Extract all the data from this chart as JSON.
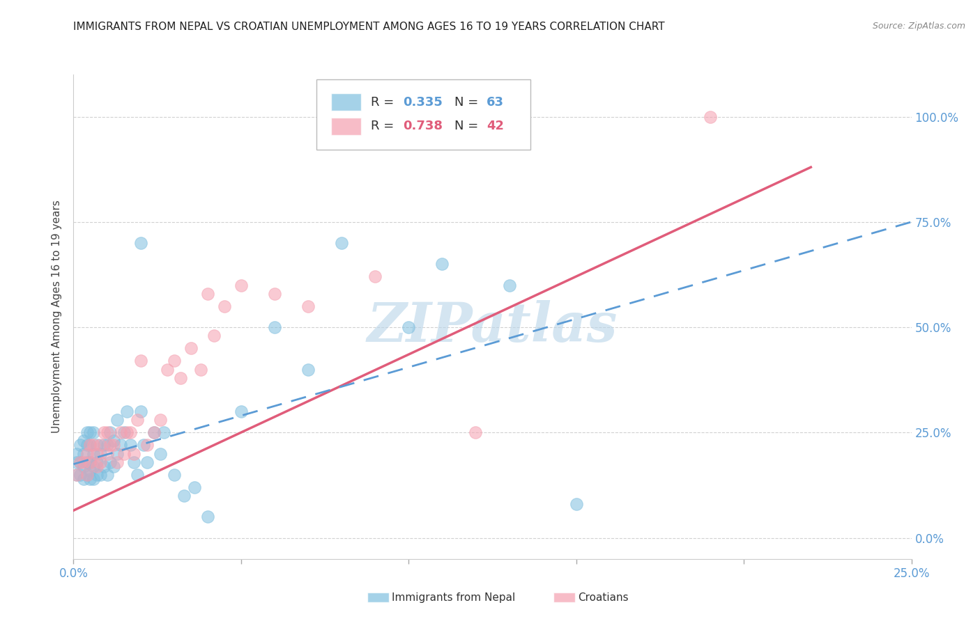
{
  "title": "IMMIGRANTS FROM NEPAL VS CROATIAN UNEMPLOYMENT AMONG AGES 16 TO 19 YEARS CORRELATION CHART",
  "source": "Source: ZipAtlas.com",
  "ylabel": "Unemployment Among Ages 16 to 19 years",
  "xmin": 0.0,
  "xmax": 0.25,
  "ymin": -0.05,
  "ymax": 1.1,
  "yticks": [
    0.0,
    0.25,
    0.5,
    0.75,
    1.0
  ],
  "xticks": [
    0.0,
    0.05,
    0.1,
    0.15,
    0.2,
    0.25
  ],
  "blue_color": "#7fbfdf",
  "pink_color": "#f5a0b0",
  "blue_line_color": "#5b9bd5",
  "pink_line_color": "#e05c7a",
  "axis_color": "#5b9bd5",
  "grid_color": "#cccccc",
  "title_fontsize": 11,
  "legend_r1": "0.335",
  "legend_n1": "63",
  "legend_r2": "0.738",
  "legend_n2": "42",
  "legend_label1": "Immigrants from Nepal",
  "legend_label2": "Croatians",
  "blue_scatter_x": [
    0.001,
    0.001,
    0.001,
    0.002,
    0.002,
    0.002,
    0.003,
    0.003,
    0.003,
    0.003,
    0.004,
    0.004,
    0.004,
    0.004,
    0.005,
    0.005,
    0.005,
    0.005,
    0.005,
    0.006,
    0.006,
    0.006,
    0.006,
    0.007,
    0.007,
    0.007,
    0.008,
    0.008,
    0.009,
    0.009,
    0.01,
    0.01,
    0.011,
    0.011,
    0.012,
    0.012,
    0.013,
    0.013,
    0.014,
    0.015,
    0.016,
    0.017,
    0.018,
    0.019,
    0.02,
    0.021,
    0.022,
    0.024,
    0.026,
    0.027,
    0.03,
    0.033,
    0.036,
    0.04,
    0.05,
    0.06,
    0.07,
    0.08,
    0.1,
    0.11,
    0.13,
    0.15,
    0.02
  ],
  "blue_scatter_y": [
    0.15,
    0.18,
    0.2,
    0.15,
    0.18,
    0.22,
    0.14,
    0.17,
    0.2,
    0.23,
    0.15,
    0.18,
    0.22,
    0.25,
    0.14,
    0.16,
    0.18,
    0.22,
    0.25,
    0.14,
    0.17,
    0.2,
    0.25,
    0.15,
    0.18,
    0.22,
    0.15,
    0.2,
    0.17,
    0.22,
    0.15,
    0.22,
    0.18,
    0.25,
    0.17,
    0.23,
    0.2,
    0.28,
    0.22,
    0.25,
    0.3,
    0.22,
    0.18,
    0.15,
    0.3,
    0.22,
    0.18,
    0.25,
    0.2,
    0.25,
    0.15,
    0.1,
    0.12,
    0.05,
    0.3,
    0.5,
    0.4,
    0.7,
    0.5,
    0.65,
    0.6,
    0.08,
    0.7
  ],
  "pink_scatter_x": [
    0.001,
    0.002,
    0.003,
    0.004,
    0.004,
    0.005,
    0.005,
    0.006,
    0.007,
    0.007,
    0.008,
    0.008,
    0.009,
    0.01,
    0.01,
    0.011,
    0.012,
    0.013,
    0.014,
    0.015,
    0.016,
    0.017,
    0.018,
    0.019,
    0.02,
    0.022,
    0.024,
    0.026,
    0.028,
    0.03,
    0.032,
    0.035,
    0.038,
    0.04,
    0.042,
    0.045,
    0.05,
    0.06,
    0.07,
    0.09,
    0.12,
    0.19
  ],
  "pink_scatter_y": [
    0.15,
    0.18,
    0.18,
    0.2,
    0.15,
    0.22,
    0.18,
    0.22,
    0.2,
    0.17,
    0.22,
    0.18,
    0.25,
    0.2,
    0.25,
    0.22,
    0.22,
    0.18,
    0.25,
    0.2,
    0.25,
    0.25,
    0.2,
    0.28,
    0.42,
    0.22,
    0.25,
    0.28,
    0.4,
    0.42,
    0.38,
    0.45,
    0.4,
    0.58,
    0.48,
    0.55,
    0.6,
    0.58,
    0.55,
    0.62,
    0.25,
    1.0
  ],
  "blue_trend_x": [
    0.0,
    0.25
  ],
  "blue_trend_y": [
    0.175,
    0.75
  ],
  "pink_trend_x": [
    0.0,
    0.22
  ],
  "pink_trend_y": [
    0.065,
    0.88
  ],
  "watermark": "ZIPatlas",
  "watermark_color": "#b8d4e8",
  "background_color": "#ffffff"
}
